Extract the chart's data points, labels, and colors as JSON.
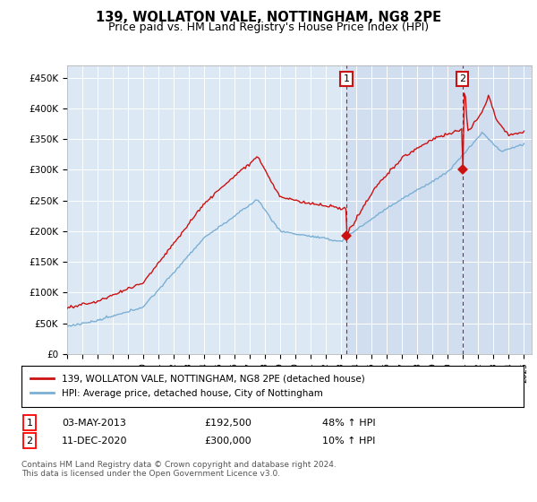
{
  "title": "139, WOLLATON VALE, NOTTINGHAM, NG8 2PE",
  "subtitle": "Price paid vs. HM Land Registry's House Price Index (HPI)",
  "ylim": [
    0,
    470000
  ],
  "xlim_start": 1995.0,
  "xlim_end": 2025.5,
  "background_color": "#dce9f5",
  "shade_color": "#c8d8ee",
  "hpi_color": "#7bafd4",
  "price_color": "#cc1111",
  "marker1_date": 2013.35,
  "marker2_date": 2020.95,
  "marker1_value": 192500,
  "marker2_value": 300000,
  "shade_start": 2013.35,
  "legend_house": "139, WOLLATON VALE, NOTTINGHAM, NG8 2PE (detached house)",
  "legend_hpi": "HPI: Average price, detached house, City of Nottingham",
  "table_row1": [
    "1",
    "03-MAY-2013",
    "£192,500",
    "48% ↑ HPI"
  ],
  "table_row2": [
    "2",
    "11-DEC-2020",
    "£300,000",
    "10% ↑ HPI"
  ],
  "footnote": "Contains HM Land Registry data © Crown copyright and database right 2024.\nThis data is licensed under the Open Government Licence v3.0."
}
